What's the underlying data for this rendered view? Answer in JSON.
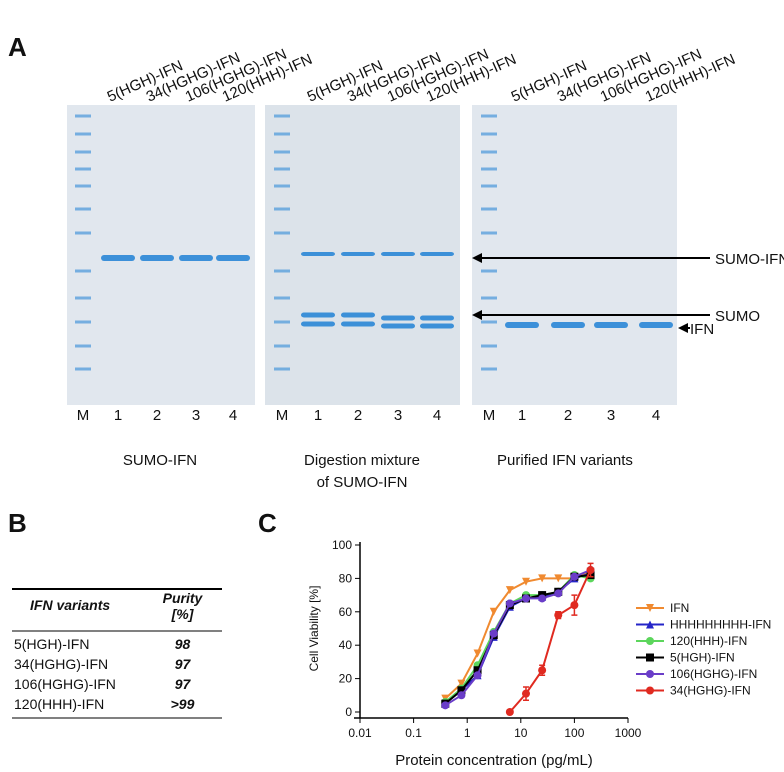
{
  "panel_a": {
    "label": "A",
    "gels": [
      {
        "headers": [
          "5(HGH)-IFN",
          "34(HGHG)-IFN",
          "106(HGHG)-IFN",
          "120(HHH)-IFN"
        ],
        "lanes": [
          "M",
          "1",
          "2",
          "3",
          "4"
        ],
        "caption": [
          "SUMO-IFN"
        ]
      },
      {
        "headers": [
          "5(HGH)-IFN",
          "34(HGHG)-IFN",
          "106(HGHG)-IFN",
          "120(HHH)-IFN"
        ],
        "lanes": [
          "M",
          "1",
          "2",
          "3",
          "4"
        ],
        "caption": [
          "Digestion mixture",
          "of SUMO-IFN"
        ]
      },
      {
        "headers": [
          "5(HGH)-IFN",
          "34(HGHG)-IFN",
          "106(HGHG)-IFN",
          "120(HHH)-IFN"
        ],
        "lanes": [
          "M",
          "1",
          "2",
          "3",
          "4"
        ],
        "caption": [
          "Purified IFN variants"
        ]
      }
    ],
    "arrows": [
      "SUMO-IFN",
      "SUMO",
      "IFN"
    ]
  },
  "panel_b": {
    "label": "B",
    "table": {
      "header": [
        "IFN variants",
        "Purity [%]"
      ],
      "rows": [
        [
          "5(HGH)-IFN",
          98
        ],
        [
          "34(HGHG)-IFN",
          97
        ],
        [
          "106(HGHG)-IFN",
          97
        ],
        [
          "120(HHH)-IFN",
          ">99"
        ]
      ]
    }
  },
  "panel_c": {
    "label": "C"
  },
  "chart_data": {
    "type": "scatter",
    "xlabel": "Protein concentration (pg/mL)",
    "ylabel": "Cell Viability [%]",
    "xscale": "log",
    "xlim": [
      0.01,
      1000
    ],
    "xticks": [
      0.01,
      0.1,
      1,
      10,
      100,
      1000
    ],
    "ylim": [
      0,
      100
    ],
    "yticks": [
      0,
      20,
      40,
      60,
      80,
      100
    ],
    "x": [
      0.39,
      0.78,
      1.56,
      3.13,
      6.25,
      12.5,
      25,
      50,
      100,
      200
    ],
    "series": [
      {
        "name": "IFN",
        "color": "#f08a30",
        "marker": "triangle-down",
        "values": [
          8,
          17,
          35,
          60,
          73,
          78,
          80,
          80,
          80,
          84
        ]
      },
      {
        "name": "HHHHHHHHH-IFN",
        "color": "#2424c8",
        "marker": "triangle-up",
        "values": [
          5,
          13,
          22,
          45,
          63,
          68,
          69,
          72,
          80,
          83
        ]
      },
      {
        "name": "120(HHH)-IFN",
        "color": "#5cd65c",
        "marker": "circle",
        "values": [
          6,
          14,
          28,
          48,
          65,
          70,
          70,
          72,
          82,
          80
        ]
      },
      {
        "name": "5(HGH)-IFN",
        "color": "#000000",
        "marker": "square",
        "values": [
          5,
          13,
          25,
          46,
          64,
          68,
          70,
          72,
          81,
          82
        ]
      },
      {
        "name": "106(HGHG)-IFN",
        "color": "#6a3dc8",
        "marker": "circle",
        "values": [
          4,
          10,
          22,
          47,
          65,
          68,
          68,
          71,
          81,
          85
        ]
      },
      {
        "name": "34(HGHG)-IFN",
        "color": "#e02a20",
        "marker": "circle",
        "values": [
          null,
          null,
          null,
          null,
          0,
          11,
          25,
          58,
          64,
          85
        ],
        "errors": [
          null,
          null,
          null,
          null,
          1,
          4,
          3,
          2,
          6,
          4
        ]
      }
    ]
  }
}
